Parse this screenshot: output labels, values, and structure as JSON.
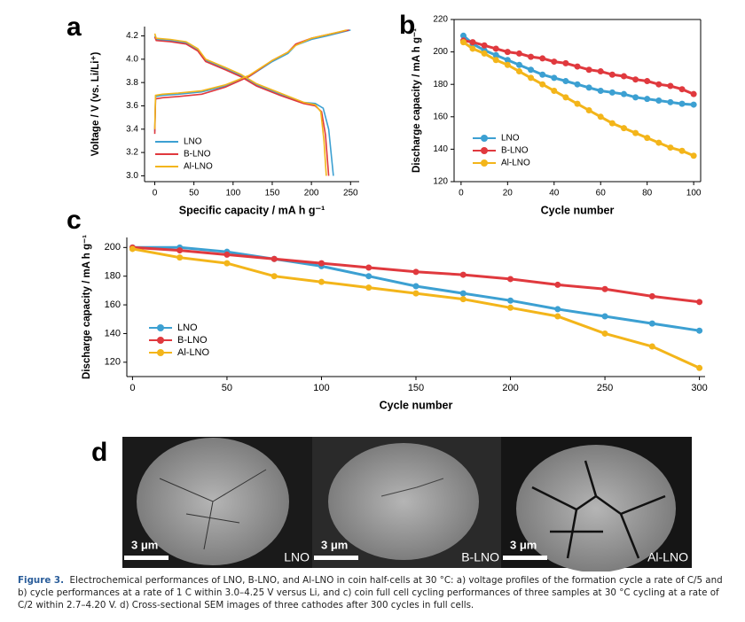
{
  "chart_data": [
    {
      "type": "line",
      "panel": "a",
      "x_label": "Specific capacity / mA h g⁻¹",
      "y_label": "Voltage / V (vs. Li/Li⁺)",
      "xlim": [
        -13,
        261
      ],
      "ylim": [
        2.95,
        4.28
      ],
      "xticks": [
        0,
        50,
        100,
        150,
        200,
        250
      ],
      "yticks": [
        {
          "value": 3.0,
          "label": "3.0"
        },
        3.2,
        3.4,
        3.6,
        3.8,
        {
          "value": 4.0,
          "label": "4.0"
        },
        4.2
      ],
      "legend": "lower left",
      "markers": false,
      "series": [
        {
          "name": "LNO",
          "color": "#3ca0d2",
          "x": [
            0,
            1,
            10,
            30,
            60,
            90,
            120,
            150,
            170,
            180,
            200,
            220,
            250,
            null,
            0,
            2,
            20,
            40,
            55,
            65,
            90,
            110,
            130,
            160,
            190,
            205,
            215,
            222,
            228
          ],
          "values": [
            3.38,
            3.68,
            3.69,
            3.7,
            3.72,
            3.77,
            3.85,
            3.98,
            4.05,
            4.12,
            4.17,
            4.2,
            4.25,
            null,
            4.2,
            4.17,
            4.16,
            4.14,
            4.08,
            3.99,
            3.92,
            3.86,
            3.78,
            3.7,
            3.63,
            3.62,
            3.58,
            3.4,
            3.0
          ]
        },
        {
          "name": "B-LNO",
          "color": "#e0393e",
          "x": [
            0,
            1,
            10,
            30,
            60,
            90,
            120,
            150,
            170,
            180,
            200,
            220,
            248,
            null,
            0,
            2,
            20,
            40,
            55,
            65,
            90,
            110,
            130,
            160,
            190,
            205,
            213,
            218,
            222
          ],
          "values": [
            3.36,
            3.66,
            3.67,
            3.68,
            3.7,
            3.76,
            3.85,
            3.99,
            4.06,
            4.13,
            4.18,
            4.21,
            4.25,
            null,
            4.19,
            4.16,
            4.15,
            4.13,
            4.07,
            3.98,
            3.91,
            3.85,
            3.77,
            3.69,
            3.62,
            3.6,
            3.55,
            3.35,
            3.0
          ]
        },
        {
          "name": "Al-LNO",
          "color": "#f3b51a",
          "x": [
            0,
            1,
            10,
            30,
            60,
            90,
            120,
            150,
            170,
            180,
            200,
            220,
            245,
            null,
            0,
            2,
            20,
            40,
            55,
            65,
            90,
            110,
            130,
            160,
            190,
            205,
            212,
            216,
            219
          ],
          "values": [
            3.4,
            3.69,
            3.7,
            3.71,
            3.73,
            3.78,
            3.86,
            3.99,
            4.06,
            4.12,
            4.18,
            4.21,
            4.25,
            null,
            4.22,
            4.18,
            4.17,
            4.15,
            4.09,
            4.0,
            3.93,
            3.87,
            3.79,
            3.71,
            3.63,
            3.61,
            3.55,
            3.3,
            3.0
          ]
        }
      ]
    },
    {
      "type": "line",
      "panel": "b",
      "x_label": "Cycle number",
      "y_label": "Discharge capacity / mA h g⁻¹",
      "xlim": [
        -3,
        103
      ],
      "ylim": [
        120,
        220
      ],
      "xticks": [
        0,
        20,
        40,
        60,
        80,
        100
      ],
      "yticks": [
        120,
        140,
        160,
        180,
        200,
        220
      ],
      "legend": "lower left",
      "markers": true,
      "frame": true,
      "x": [
        1,
        5,
        10,
        15,
        20,
        25,
        30,
        35,
        40,
        45,
        50,
        55,
        60,
        65,
        70,
        75,
        80,
        85,
        90,
        95,
        100
      ],
      "series": [
        {
          "name": "LNO",
          "color": "#3ca0d2",
          "values": [
            210,
            205,
            201,
            198,
            195,
            192,
            189,
            186,
            184,
            182,
            180,
            178,
            176,
            175,
            174,
            172,
            171,
            170,
            169,
            168,
            167.5
          ]
        },
        {
          "name": "B-LNO",
          "color": "#e0393e",
          "values": [
            207,
            206,
            204,
            202,
            200,
            199,
            197,
            196,
            194,
            193,
            191,
            189,
            188,
            186,
            185,
            183,
            182,
            180,
            179,
            177,
            174
          ]
        },
        {
          "name": "Al-LNO",
          "color": "#f3b51a",
          "values": [
            206,
            202,
            199,
            195,
            192,
            188,
            184,
            180,
            176,
            172,
            168,
            164,
            160,
            156,
            153,
            150,
            147,
            144,
            141,
            139,
            136
          ]
        }
      ]
    },
    {
      "type": "line",
      "panel": "c",
      "x_label": "Cycle number",
      "y_label": "Discharge capacity / mA h g⁻¹",
      "xlim": [
        -3,
        303
      ],
      "ylim": [
        110,
        207
      ],
      "xticks": [
        0,
        50,
        100,
        150,
        200,
        250,
        300
      ],
      "yticks": [
        120,
        140,
        160,
        180,
        200
      ],
      "legend": "center left",
      "markers": true,
      "x": [
        0,
        25,
        50,
        75,
        100,
        125,
        150,
        175,
        200,
        225,
        250,
        275,
        300
      ],
      "series": [
        {
          "name": "LNO",
          "color": "#3ca0d2",
          "values": [
            200,
            200,
            197,
            192,
            187,
            180,
            173,
            168,
            163,
            157,
            152,
            147,
            142
          ]
        },
        {
          "name": "B-LNO",
          "color": "#e0393e",
          "values": [
            200,
            198,
            195,
            192,
            189,
            186,
            183,
            181,
            178,
            174,
            171,
            166,
            162
          ]
        },
        {
          "name": "Al-LNO",
          "color": "#f3b51a",
          "values": [
            199,
            193,
            189,
            180,
            176,
            172,
            168,
            164,
            158,
            152,
            140,
            131,
            116
          ]
        }
      ]
    }
  ],
  "sem": {
    "panel": "d",
    "images": [
      {
        "label": "LNO",
        "scale": "3 μm"
      },
      {
        "label": "B-LNO",
        "scale": "3 μm"
      },
      {
        "label": "Al-LNO",
        "scale": "3 μm"
      }
    ]
  },
  "caption": {
    "label": "Figure 3.",
    "text": "Electrochemical performances of LNO, B-LNO, and Al-LNO in coin half-cells at 30 °C: a) voltage profiles of the formation cycle a rate of C/5 and b) cycle performances at a rate of 1 C within 3.0–4.25 V versus Li, and c) coin full cell cycling performances of three samples at 30 °C cycling at a rate of C/2 within 2.7–4.20 V. d) Cross-sectional SEM images of three cathodes after 300 cycles in full cells."
  }
}
